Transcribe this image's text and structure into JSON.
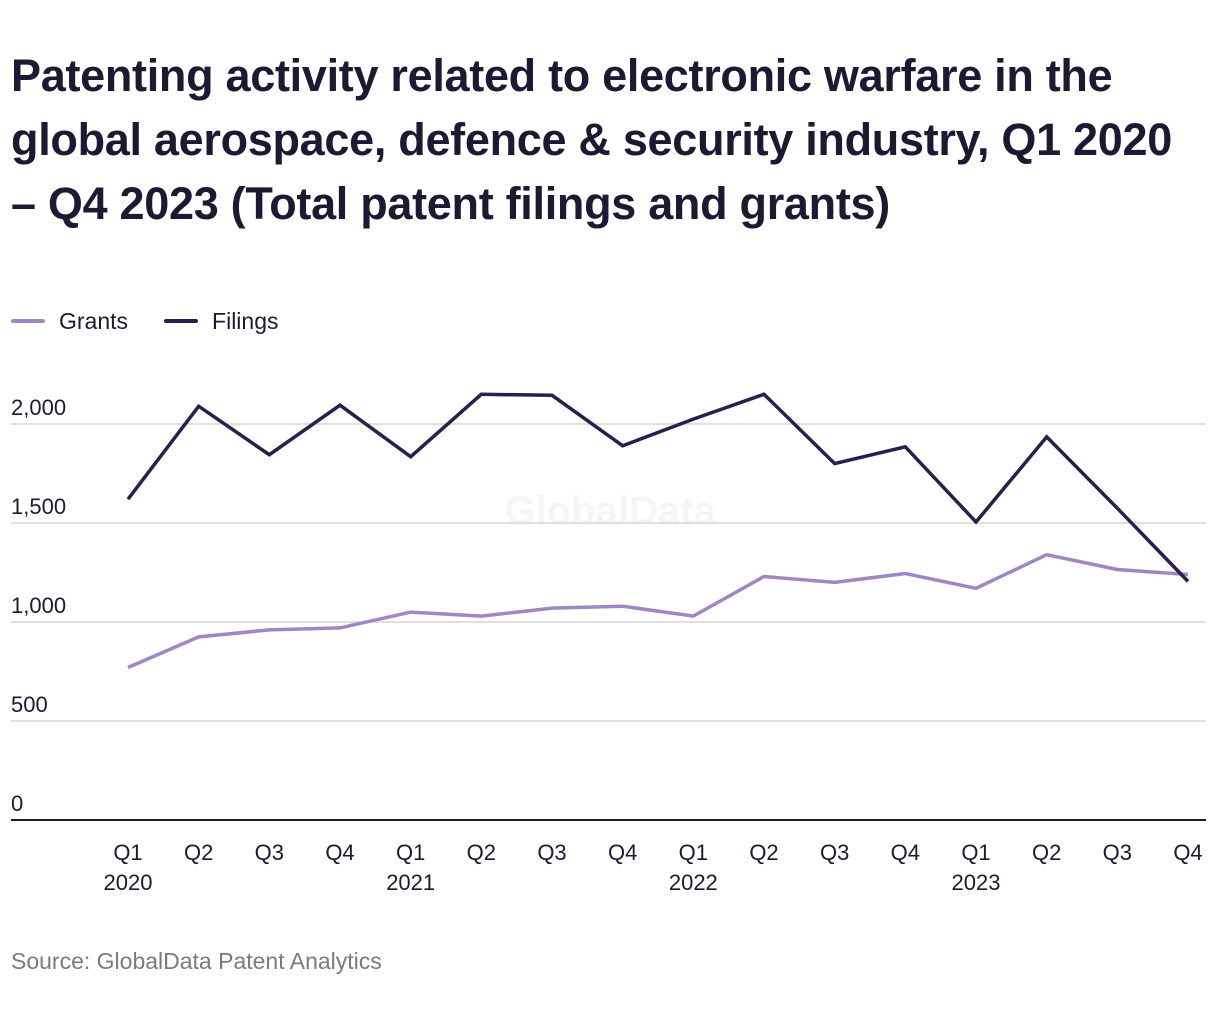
{
  "watermark": "GlobalData",
  "source": "Source: GlobalData Patent Analytics",
  "colors": {
    "grants": "#9f87c4",
    "filings": "#2a1f4c",
    "grid": "#d6d6d6",
    "axis": "#1b1a33"
  },
  "chart_data": {
    "type": "line",
    "title": "Patenting activity related to electronic warfare in the global aerospace, defence & security industry, Q1 2020 – Q4 2023 (Total patent filings and grants)",
    "xlabel": "",
    "ylabel": "",
    "ylim": [
      0,
      2000
    ],
    "y_ticks": [
      0,
      500,
      1000,
      1500,
      2000
    ],
    "y_tick_labels": [
      "0",
      "500",
      "1,000",
      "1,500",
      "2,000"
    ],
    "grid": true,
    "legend_position": "top-left",
    "categories": [
      "Q1 2020",
      "Q2 2020",
      "Q3 2020",
      "Q4 2020",
      "Q1 2021",
      "Q2 2021",
      "Q3 2021",
      "Q4 2021",
      "Q1 2022",
      "Q2 2022",
      "Q3 2022",
      "Q4 2022",
      "Q1 2023",
      "Q2 2023",
      "Q3 2023",
      "Q4 2023"
    ],
    "x_tick_labels": [
      {
        "quarter": "Q1",
        "year": "2020"
      },
      {
        "quarter": "Q2",
        "year": ""
      },
      {
        "quarter": "Q3",
        "year": ""
      },
      {
        "quarter": "Q4",
        "year": ""
      },
      {
        "quarter": "Q1",
        "year": "2021"
      },
      {
        "quarter": "Q2",
        "year": ""
      },
      {
        "quarter": "Q3",
        "year": ""
      },
      {
        "quarter": "Q4",
        "year": ""
      },
      {
        "quarter": "Q1",
        "year": "2022"
      },
      {
        "quarter": "Q2",
        "year": ""
      },
      {
        "quarter": "Q3",
        "year": ""
      },
      {
        "quarter": "Q4",
        "year": ""
      },
      {
        "quarter": "Q1",
        "year": "2023"
      },
      {
        "quarter": "Q2",
        "year": ""
      },
      {
        "quarter": "Q3",
        "year": ""
      },
      {
        "quarter": "Q4",
        "year": ""
      }
    ],
    "series": [
      {
        "name": "Grants",
        "color": "#9f87c4",
        "values": [
          770,
          925,
          960,
          970,
          1050,
          1030,
          1070,
          1080,
          1030,
          1230,
          1200,
          1245,
          1170,
          1340,
          1265,
          1240
        ]
      },
      {
        "name": "Filings",
        "color": "#2a1f4c",
        "values": [
          1620,
          2090,
          1845,
          2095,
          1835,
          2150,
          2145,
          1890,
          2025,
          2150,
          1800,
          1885,
          1505,
          1935,
          1575,
          1205
        ]
      }
    ]
  }
}
